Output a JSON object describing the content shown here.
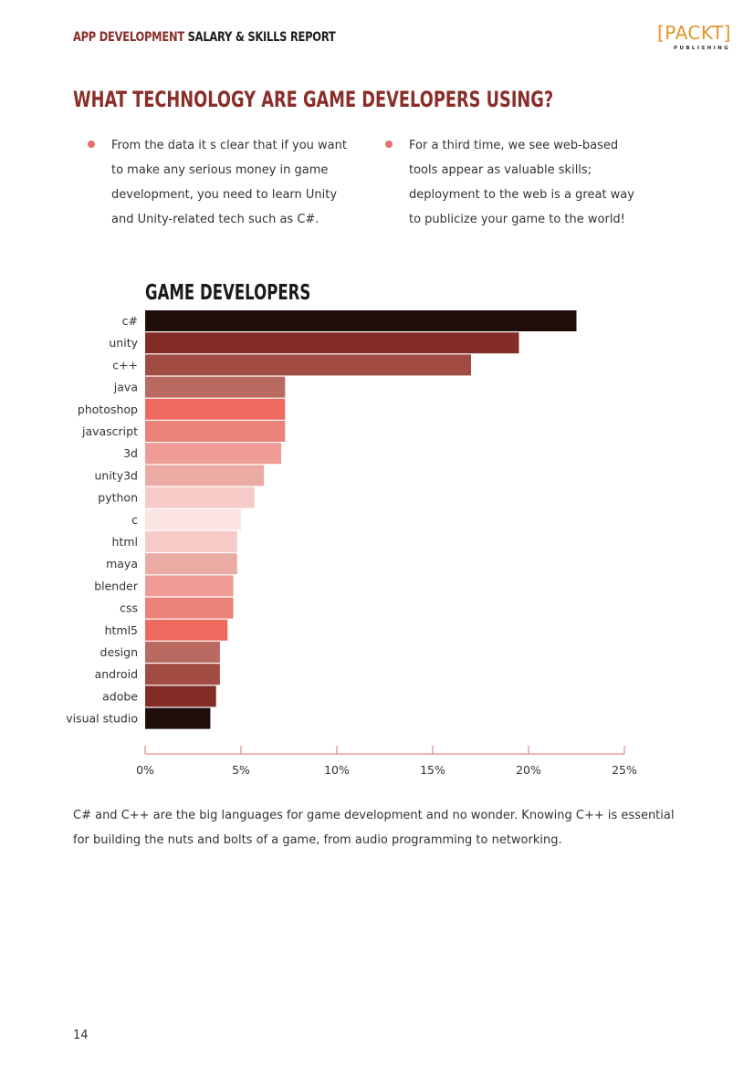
{
  "header": {
    "title_accent": "APP DEVELOPMENT",
    "title_rest": "SALARY & SKILLS REPORT",
    "logo_word": "[PACKT]",
    "logo_sub": "PUBLISHING"
  },
  "page_title": "WHAT TECHNOLOGY ARE GAME DEVELOPERS USING?",
  "bullets": [
    "From the data it s clear that if you want to make any serious money in game development, you need to learn Unity and Unity-related tech such as C#.",
    "For a third time, we see web-based tools appear as valuable skills; deployment to the web is a great way to publicize your game to the world!"
  ],
  "chart_data": {
    "type": "bar",
    "orientation": "horizontal",
    "title": "GAME DEVELOPERS",
    "categories": [
      "c#",
      "unity",
      "c++",
      "java",
      "photoshop",
      "javascript",
      "3d",
      "unity3d",
      "python",
      "c",
      "html",
      "maya",
      "blender",
      "css",
      "html5",
      "design",
      "android",
      "adobe",
      "visual studio"
    ],
    "values": [
      22.5,
      19.5,
      17.0,
      7.3,
      7.3,
      7.3,
      7.1,
      6.2,
      5.7,
      5.0,
      4.8,
      4.8,
      4.6,
      4.6,
      4.3,
      3.9,
      3.9,
      3.7,
      3.4
    ],
    "colors": [
      "#200e0c",
      "#832c25",
      "#a24b43",
      "#bb6a62",
      "#ee6a5f",
      "#ea8279",
      "#f09c96",
      "#e9aba4",
      "#f6cac7",
      "#fce4e4",
      "#f6cac7",
      "#e9aba4",
      "#f09c96",
      "#ea8279",
      "#ee6a5f",
      "#bb6a62",
      "#a24b43",
      "#832c25",
      "#200e0c"
    ],
    "xlim": [
      0,
      25
    ],
    "xticks": [
      0,
      5,
      10,
      15,
      20,
      25
    ],
    "xtick_labels": [
      "0%",
      "5%",
      "10%",
      "15%",
      "20%",
      "25%"
    ],
    "axis_color": "#e0726b",
    "xlabel": "",
    "ylabel": ""
  },
  "body_paragraph": "C# and C++ are the big languages for game development and no wonder. Knowing C++ is essential for building the nuts and bolts of a game, from audio programming to networking.",
  "page_number": "14"
}
